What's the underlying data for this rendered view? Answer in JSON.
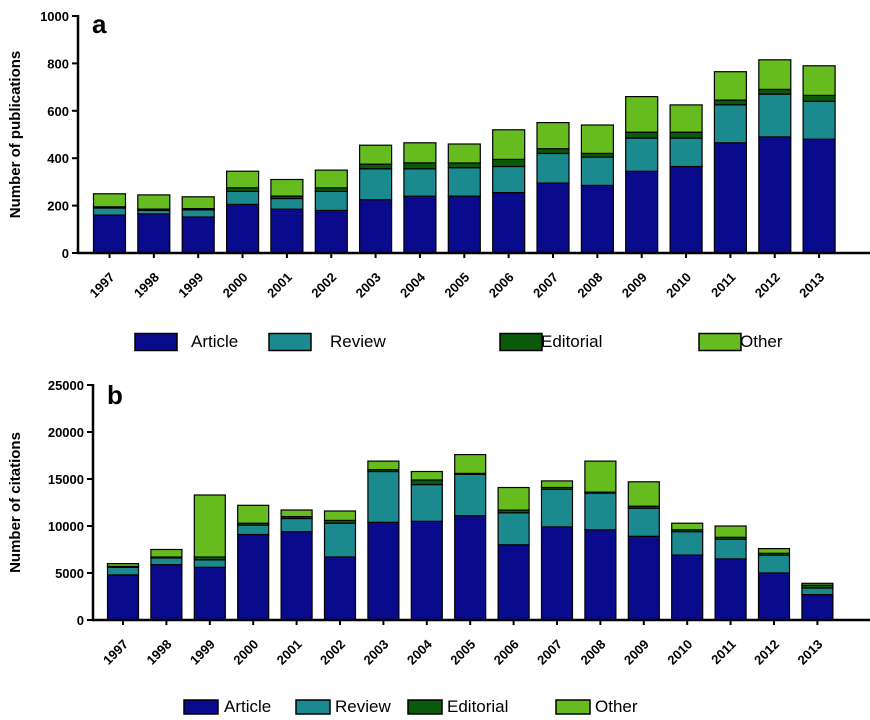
{
  "colors": {
    "Article": "#0a0a8c",
    "Review": "#1b8a8e",
    "Editorial": "#0b5a0b",
    "Other": "#66bb1e"
  },
  "chart_data": [
    {
      "type": "bar",
      "stacked": true,
      "panel_label": "a",
      "ylabel": "Number of publications",
      "ylim": [
        0,
        1000
      ],
      "yticks": [
        0,
        200,
        400,
        600,
        800,
        1000
      ],
      "legend_position": "bottom",
      "categories": [
        "1997",
        "1998",
        "1999",
        "2000",
        "2001",
        "2002",
        "2003",
        "2004",
        "2005",
        "2006",
        "2007",
        "2008",
        "2009",
        "2010",
        "2011",
        "2012",
        "2013"
      ],
      "series": [
        {
          "name": "Article",
          "values": [
            160,
            165,
            152,
            205,
            185,
            180,
            225,
            240,
            240,
            255,
            295,
            285,
            345,
            365,
            465,
            490,
            480
          ]
        },
        {
          "name": "Review",
          "values": [
            30,
            15,
            30,
            55,
            45,
            80,
            130,
            115,
            120,
            110,
            125,
            120,
            140,
            120,
            160,
            180,
            160
          ]
        },
        {
          "name": "Editorial",
          "values": [
            5,
            5,
            5,
            15,
            10,
            15,
            20,
            25,
            20,
            30,
            20,
            15,
            25,
            25,
            20,
            20,
            25
          ]
        },
        {
          "name": "Other",
          "values": [
            55,
            60,
            50,
            70,
            70,
            75,
            80,
            85,
            80,
            125,
            110,
            120,
            150,
            115,
            120,
            125,
            125
          ]
        }
      ]
    },
    {
      "type": "bar",
      "stacked": true,
      "panel_label": "b",
      "ylabel": "Number of citations",
      "ylim": [
        0,
        25000
      ],
      "yticks": [
        0,
        5000,
        10000,
        15000,
        20000,
        25000
      ],
      "legend_position": "bottom",
      "categories": [
        "1997",
        "1998",
        "1999",
        "2000",
        "2001",
        "2002",
        "2003",
        "2004",
        "2005",
        "2006",
        "2007",
        "2008",
        "2009",
        "2010",
        "2011",
        "2012",
        "2013"
      ],
      "series": [
        {
          "name": "Article",
          "values": [
            4800,
            5900,
            5600,
            9100,
            9400,
            6700,
            10400,
            10500,
            11100,
            8000,
            9900,
            9600,
            8900,
            6900,
            6500,
            5000,
            2700
          ]
        },
        {
          "name": "Review",
          "values": [
            800,
            700,
            800,
            1000,
            1400,
            3600,
            5400,
            3900,
            4400,
            3400,
            4000,
            3900,
            3000,
            2500,
            2100,
            1900,
            700
          ]
        },
        {
          "name": "Editorial",
          "values": [
            100,
            100,
            300,
            200,
            200,
            300,
            200,
            500,
            100,
            300,
            200,
            100,
            200,
            200,
            200,
            200,
            300
          ]
        },
        {
          "name": "Other",
          "values": [
            300,
            800,
            6600,
            1900,
            700,
            1000,
            900,
            900,
            2000,
            2400,
            700,
            3300,
            2600,
            700,
            1200,
            500,
            200
          ]
        }
      ]
    }
  ]
}
